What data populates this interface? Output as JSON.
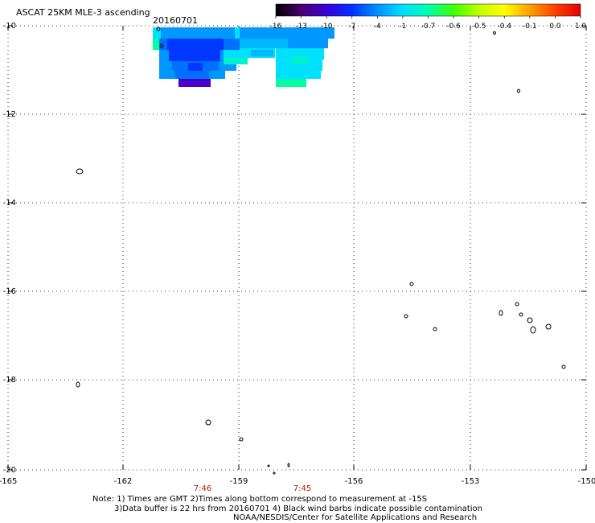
{
  "header": {
    "title": "ASCAT 25KM MLE-3 ascending",
    "date": "20160701"
  },
  "colorbar": {
    "labels": [
      "-16",
      "-13",
      "-10",
      "-7",
      "-4",
      "-1",
      "-0.7",
      "-0.6",
      "-0.5",
      "-0.4",
      "-0.1",
      "0.0",
      "1.0"
    ],
    "colors": [
      "#000000",
      "#4b0070",
      "#3a00d8",
      "#0030ff",
      "#0090ff",
      "#00e0ff",
      "#00ffb0",
      "#40ff00",
      "#c0ff00",
      "#ffff00",
      "#ffa000",
      "#ff4000",
      "#e00000"
    ]
  },
  "map": {
    "y_ticks": [
      "-10",
      "-12",
      "-14",
      "-16",
      "-18",
      "-20"
    ],
    "x_ticks": [
      "-165",
      "-162",
      "-159",
      "-156",
      "-153",
      "-150"
    ],
    "times": [
      "7:46",
      "7:45"
    ],
    "grid": "dotted",
    "swath_colors": {
      "deep_blue": "#0038ff",
      "blue": "#0070ff",
      "light_blue": "#0098ff",
      "cyan_blue": "#00b8ff",
      "cyan": "#00e0ff",
      "aqua": "#00f0d0",
      "green_cyan": "#00ffa0",
      "indigo": "#4a00c8"
    }
  },
  "notes": {
    "line1": "Note: 1) Times are GMT 2)Times along bottom correspond to measurement at -15S",
    "line2": "3)Data buffer is 22 hrs from 20160701 4) Black wind barbs indicate possible contamination",
    "line3": "NOAA/NESDIS/Center for Satellite Applications and Research"
  }
}
